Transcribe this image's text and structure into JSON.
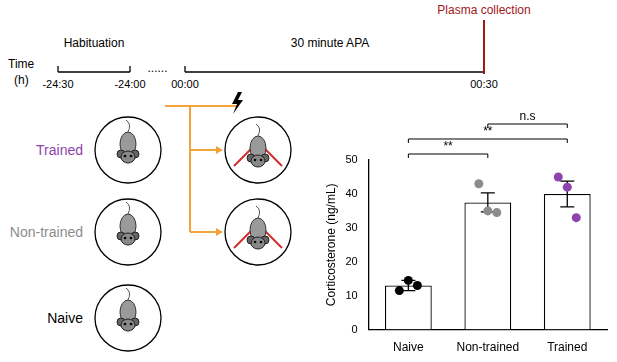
{
  "diagram": {
    "timeline": {
      "axis_label": "Time",
      "unit": "(h)",
      "ticks": [
        "-24:30",
        "-24:00",
        "00:00",
        "00:30"
      ],
      "gap": "......",
      "phases": [
        "Habituation",
        "30 minute APA"
      ],
      "event": {
        "label": "Plasma collection",
        "color": "#a3171c"
      }
    },
    "groups": [
      {
        "label": "Trained",
        "color": "#8e44ad",
        "apa": true
      },
      {
        "label": "Non-trained",
        "color": "#8c8c8c",
        "apa": true
      },
      {
        "label": "Naive",
        "color": "#000000",
        "apa": false
      }
    ]
  },
  "chart_data": {
    "type": "bar",
    "ylabel": "Corticosterone (ng/mL)",
    "categories": [
      "Naive",
      "Non-trained",
      "Trained"
    ],
    "values": [
      13,
      37.5,
      40
    ],
    "errors": [
      1.5,
      2.8,
      3.8
    ],
    "points": [
      [
        11.5,
        14.5,
        13
      ],
      [
        43,
        35,
        34.5
      ],
      [
        45,
        42,
        33
      ]
    ],
    "colors": [
      "#000000",
      "#8c8c8c",
      "#8e44ad"
    ],
    "ylim": [
      0,
      50
    ],
    "yticks": [
      0,
      10,
      20,
      30,
      40,
      50
    ],
    "grid": false,
    "annotations": [
      {
        "between": [
          "Naive",
          "Non-trained"
        ],
        "label": "**"
      },
      {
        "between": [
          "Naive",
          "Trained"
        ],
        "label": "**"
      },
      {
        "between": [
          "Non-trained",
          "Trained"
        ],
        "label": "n.s"
      }
    ]
  }
}
